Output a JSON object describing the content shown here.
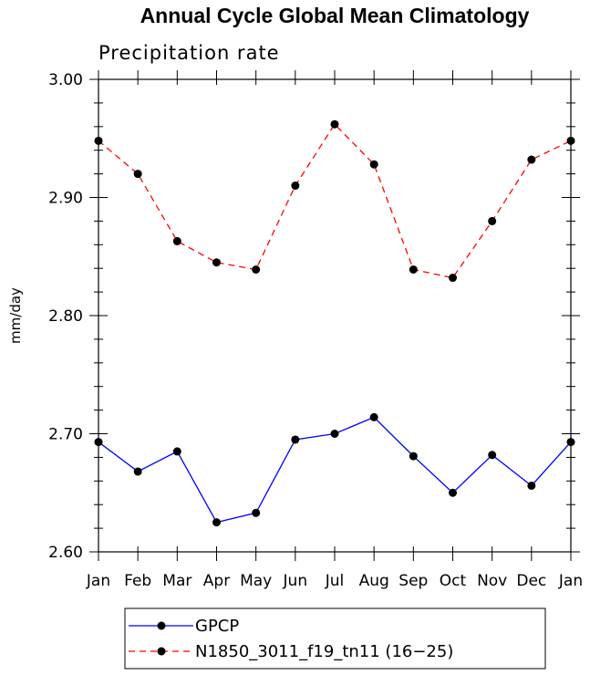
{
  "chart_data": {
    "type": "line",
    "title": "Annual Cycle Global Mean Climatology",
    "subtitle": "Precipitation rate",
    "ylabel": "mm/day",
    "xlabel": "",
    "categories": [
      "Jan",
      "Feb",
      "Mar",
      "Apr",
      "May",
      "Jun",
      "Jul",
      "Aug",
      "Sep",
      "Oct",
      "Nov",
      "Dec",
      "Jan"
    ],
    "ylim": [
      2.6,
      3.0
    ],
    "yticks": [
      "2.60",
      "2.70",
      "2.80",
      "2.90",
      "3.00"
    ],
    "series": [
      {
        "name": "GPCP",
        "color": "#0000ff",
        "dashed": false,
        "values": [
          2.693,
          2.668,
          2.685,
          2.625,
          2.633,
          2.695,
          2.7,
          2.714,
          2.681,
          2.65,
          2.682,
          2.656,
          2.693
        ]
      },
      {
        "name": "N1850_3011_f19_tn11 (16−25)",
        "color": "#ff0000",
        "dashed": true,
        "values": [
          2.948,
          2.92,
          2.863,
          2.845,
          2.839,
          2.91,
          2.962,
          2.928,
          2.839,
          2.832,
          2.88,
          2.932,
          2.948
        ]
      }
    ],
    "legend_position": "bottom-center"
  }
}
